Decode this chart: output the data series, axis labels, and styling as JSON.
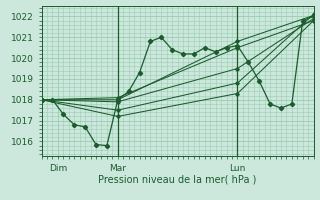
{
  "xlabel": "Pression niveau de la mer( hPa )",
  "ylim": [
    1015.3,
    1022.5
  ],
  "xlim": [
    0,
    50
  ],
  "bg_color": "#cce8dc",
  "grid_color": "#99ccb3",
  "line_color": "#1a5c2a",
  "tick_label_color": "#1a5c2a",
  "yticks": [
    1016,
    1017,
    1018,
    1019,
    1020,
    1021,
    1022
  ],
  "xtick_positions": [
    3,
    14,
    36
  ],
  "xtick_labels": [
    "Dim",
    "Mar",
    "Lun"
  ],
  "vline_positions": [
    14,
    36
  ],
  "series": [
    [
      0,
      1018.0,
      2,
      1018.0,
      4,
      1017.3,
      6,
      1016.8,
      8,
      1016.7,
      10,
      1015.85,
      12,
      1015.8,
      14,
      1018.0,
      16,
      1018.4,
      18,
      1019.3,
      20,
      1020.8,
      22,
      1021.0,
      24,
      1020.4,
      26,
      1020.2,
      28,
      1020.2,
      30,
      1020.5,
      32,
      1020.3,
      34,
      1020.5,
      36,
      1020.6,
      38,
      1019.8,
      40,
      1018.9,
      42,
      1017.8,
      44,
      1017.6,
      46,
      1017.8,
      48,
      1021.8,
      50,
      1022.0
    ],
    [
      0,
      1018.0,
      14,
      1018.0,
      36,
      1020.8,
      50,
      1022.05
    ],
    [
      0,
      1018.0,
      14,
      1018.1,
      36,
      1020.5,
      50,
      1021.8
    ],
    [
      0,
      1018.0,
      14,
      1017.9,
      36,
      1019.5,
      50,
      1021.9
    ],
    [
      0,
      1018.0,
      14,
      1017.5,
      36,
      1018.8,
      50,
      1022.1
    ],
    [
      0,
      1018.0,
      14,
      1017.2,
      36,
      1018.3,
      50,
      1021.8
    ]
  ]
}
